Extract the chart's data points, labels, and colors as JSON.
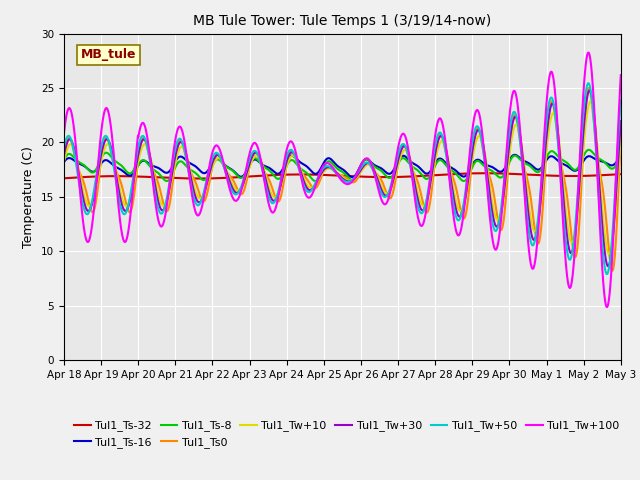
{
  "title": "MB Tule Tower: Tule Temps 1 (3/19/14-now)",
  "ylabel": "Temperature (C)",
  "ylim": [
    0,
    30
  ],
  "yticks": [
    0,
    5,
    10,
    15,
    20,
    25,
    30
  ],
  "legend_label": "MB_tule",
  "series": [
    {
      "label": "Tul1_Ts-32",
      "color": "#cc0000",
      "lw": 1.5
    },
    {
      "label": "Tul1_Ts-16",
      "color": "#0000cc",
      "lw": 1.5
    },
    {
      "label": "Tul1_Ts-8",
      "color": "#00cc00",
      "lw": 1.5
    },
    {
      "label": "Tul1_Ts0",
      "color": "#ff8800",
      "lw": 1.5
    },
    {
      "label": "Tul1_Tw+10",
      "color": "#dddd00",
      "lw": 1.5
    },
    {
      "label": "Tul1_Tw+30",
      "color": "#9900cc",
      "lw": 1.5
    },
    {
      "label": "Tul1_Tw+50",
      "color": "#00cccc",
      "lw": 1.5
    },
    {
      "label": "Tul1_Tw+100",
      "color": "#ff00ff",
      "lw": 1.5
    }
  ],
  "xtick_labels": [
    "Apr 18",
    "Apr 19",
    "Apr 20",
    "Apr 21",
    "Apr 22",
    "Apr 23",
    "Apr 24",
    "Apr 25",
    "Apr 26",
    "Apr 27",
    "Apr 28",
    "Apr 29",
    "Apr 30",
    "May 1",
    "May 2",
    "May 3"
  ],
  "xtick_positions": [
    0,
    1,
    2,
    3,
    4,
    5,
    6,
    7,
    8,
    9,
    10,
    11,
    12,
    13,
    14,
    15
  ]
}
